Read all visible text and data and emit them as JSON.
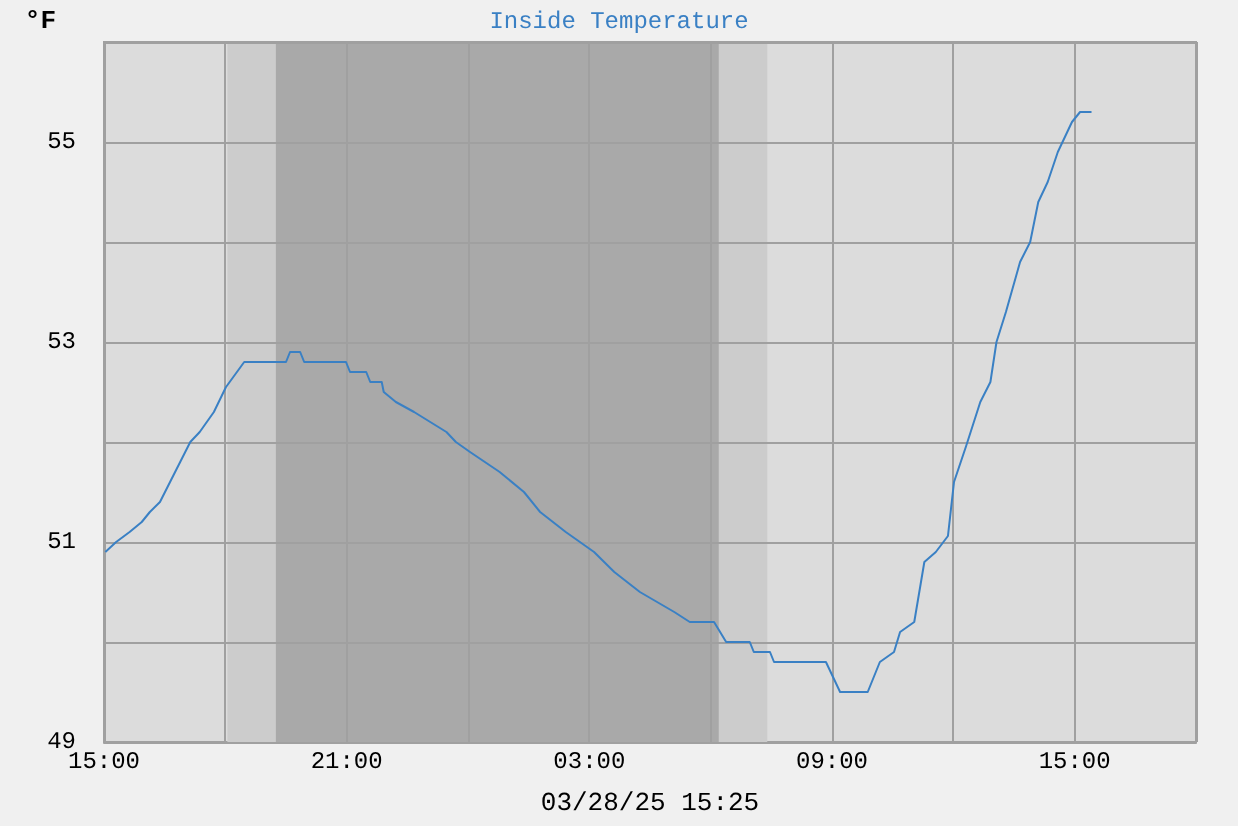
{
  "chart_data": {
    "type": "line",
    "title": "Inside Temperature",
    "ylabel": "°F",
    "xlabel": "03/28/25 15:25",
    "series": [
      {
        "color": "#3a80c4",
        "x": [
          "--03-27T15:02",
          "--03-27T15:18",
          "--03-27T15:38",
          "--03-27T15:56",
          "--03-27T16:08",
          "--03-27T16:23",
          "--03-27T16:38",
          "--03-27T16:53",
          "--03-27T17:08",
          "--03-27T17:22",
          "--03-27T17:43",
          "--03-27T18:01",
          "--03-27T18:28",
          "--03-27T19:30",
          "--03-27T19:36",
          "--03-27T19:51",
          "--03-27T19:57",
          "--03-27T20:59",
          "--03-27T21:05",
          "--03-27T21:29",
          "--03-27T21:35",
          "--03-27T21:52",
          "--03-27T21:55",
          "--03-27T22:13",
          "--03-27T22:40",
          "--03-27T23:04",
          "--03-27T23:28",
          "--03-27T23:42",
          "--03-28T00:03",
          "--03-28T00:47",
          "--03-28T01:23",
          "--03-28T01:47",
          "--03-28T02:25",
          "--03-28T03:07",
          "--03-28T03:37",
          "--03-28T04:15",
          "--03-28T05:06",
          "--03-28T05:29",
          "--03-28T06:05",
          "--03-28T06:23",
          "--03-28T06:58",
          "--03-28T07:04",
          "--03-28T07:28",
          "--03-28T07:34",
          "--03-28T08:51",
          "--03-28T09:12",
          "--03-28T09:53",
          "--03-28T10:11",
          "--03-28T10:32",
          "--03-28T10:41",
          "--03-28T11:02",
          "--03-28T11:17",
          "--03-28T11:34",
          "--03-28T11:52",
          "--03-28T12:01",
          "--03-28T12:19",
          "--03-28T12:40",
          "--03-28T12:55",
          "--03-28T13:04",
          "--03-28T13:18",
          "--03-28T13:39",
          "--03-28T13:54",
          "--03-28T14:06",
          "--03-28T14:20",
          "--03-28T14:35",
          "--03-28T14:56",
          "--03-28T15:08",
          "--03-28T15:25"
        ],
        "values": [
          50.9,
          51.0,
          51.1,
          51.2,
          51.3,
          51.4,
          51.6,
          51.8,
          52.0,
          52.1,
          52.3,
          52.55,
          52.8,
          52.8,
          52.9,
          52.9,
          52.8,
          52.8,
          52.7,
          52.7,
          52.6,
          52.6,
          52.5,
          52.4,
          52.3,
          52.2,
          52.1,
          52.0,
          51.9,
          51.7,
          51.5,
          51.3,
          51.1,
          50.9,
          50.7,
          50.5,
          50.3,
          50.2,
          50.2,
          50.0,
          50.0,
          49.9,
          49.9,
          49.8,
          49.8,
          49.5,
          49.5,
          49.8,
          49.9,
          50.1,
          50.2,
          50.8,
          50.9,
          51.06,
          51.6,
          51.96,
          52.4,
          52.6,
          53.0,
          53.3,
          53.8,
          54.0,
          54.4,
          54.6,
          54.9,
          55.2,
          55.3,
          55.3
        ]
      }
    ],
    "xlim": [
      "--03-27T15:00",
      "--03-28T18:00"
    ],
    "xticks": [
      {
        "value": "--03-27T15:00",
        "label": "15:00"
      },
      {
        "value": "--03-27T18:00",
        "label": null
      },
      {
        "value": "--03-27T21:00",
        "label": "21:00"
      },
      {
        "value": "--03-28T00:00",
        "label": null
      },
      {
        "value": "--03-28T03:00",
        "label": "03:00"
      },
      {
        "value": "--03-28T06:00",
        "label": null
      },
      {
        "value": "--03-28T09:00",
        "label": "09:00"
      },
      {
        "value": "--03-28T12:00",
        "label": null
      },
      {
        "value": "--03-28T15:00",
        "label": "15:00"
      },
      {
        "value": "--03-28T18:00",
        "label": null
      }
    ],
    "ylim": [
      49,
      56
    ],
    "yticks": [
      49,
      {
        "value": 50,
        "label": null
      },
      51,
      {
        "value": 52,
        "label": null
      },
      53,
      {
        "value": 54,
        "label": null
      },
      55,
      {
        "value": 56,
        "label": null
      }
    ],
    "bands": [
      {
        "axis": "x",
        "from": "--03-27T18:03",
        "to": "--03-28T07:24",
        "color": "#cccccc"
      },
      {
        "axis": "x",
        "from": "--03-27T19:15",
        "to": "--03-28T06:12",
        "color": "#a9a9a9"
      }
    ],
    "grid": true,
    "marker": "none",
    "line_style": "solid"
  }
}
